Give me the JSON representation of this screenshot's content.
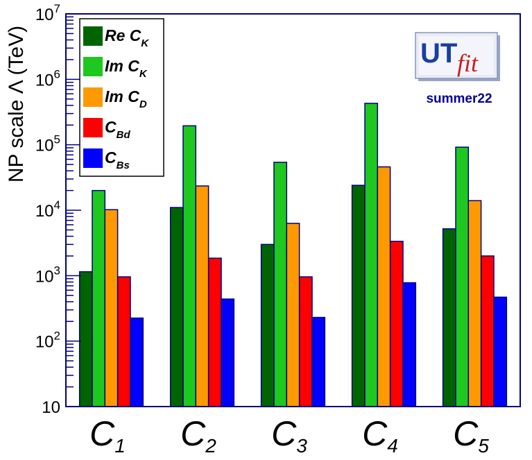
{
  "chart_data": {
    "type": "bar",
    "scale": "log",
    "ylabel": "NP scale Λ (TeV)",
    "ylim": [
      10,
      10000000
    ],
    "yticks": [
      {
        "value": 10,
        "base": "10",
        "exp": ""
      },
      {
        "value": 100,
        "base": "10",
        "exp": "2"
      },
      {
        "value": 1000,
        "base": "10",
        "exp": "3"
      },
      {
        "value": 10000,
        "base": "10",
        "exp": "4"
      },
      {
        "value": 100000,
        "base": "10",
        "exp": "5"
      },
      {
        "value": 1000000,
        "base": "10",
        "exp": "6"
      },
      {
        "value": 10000000,
        "base": "10",
        "exp": "7"
      }
    ],
    "categories": [
      {
        "main": "C",
        "sub": "1"
      },
      {
        "main": "C",
        "sub": "2"
      },
      {
        "main": "C",
        "sub": "3"
      },
      {
        "main": "C",
        "sub": "4"
      },
      {
        "main": "C",
        "sub": "5"
      }
    ],
    "series": [
      {
        "name": "Re C_K",
        "label_main": "Re C",
        "label_sub": "K",
        "color": "#006400",
        "values": [
          1150,
          11000,
          3000,
          24000,
          5200
        ]
      },
      {
        "name": "Im C_K",
        "label_main": "Im C",
        "label_sub": "K",
        "color": "#1ec81e",
        "values": [
          20000,
          195000,
          54000,
          430000,
          92000
        ]
      },
      {
        "name": "Im C_D",
        "label_main": "Im C",
        "label_sub": "D",
        "color": "#ff9900",
        "values": [
          10200,
          23500,
          6300,
          46000,
          14000
        ]
      },
      {
        "name": "C_Bd",
        "label_main": "C",
        "label_sub": "Bd",
        "color": "#ff0000",
        "values": [
          960,
          1850,
          960,
          3350,
          2000
        ]
      },
      {
        "name": "C_Bs",
        "label_main": "C",
        "label_sub": "Bs",
        "color": "#0000ff",
        "values": [
          225,
          440,
          230,
          780,
          470
        ]
      }
    ],
    "legend_position": "top-left"
  },
  "logo": {
    "text_ut": "UT",
    "text_fit": "fit",
    "subtitle": "summer22"
  },
  "colors": {
    "axis": "#000080",
    "bar_outline": "#000080",
    "logo_ut": "#1a3fa0",
    "logo_fit": "#c81e1e",
    "subtitle": "#000099"
  }
}
